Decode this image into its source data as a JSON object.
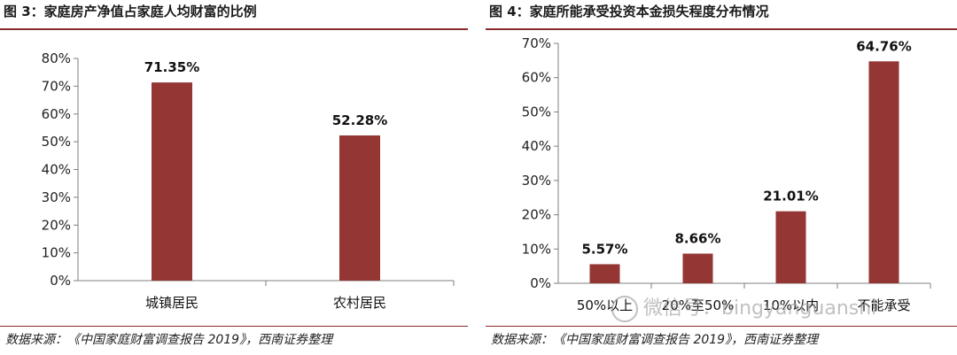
{
  "charts": [
    {
      "title": "图 3：家庭房产净值占家庭人均财富的比例",
      "source": "数据来源：《中国家庭财富调查报告 2019》，西南证券整理"
    },
    {
      "title": "图 4：家庭所能承受投资本金损失程度分布情况",
      "source": "数据来源：《中国家庭财富调查报告 2019》，西南证券整理"
    }
  ],
  "watermark": {
    "text": "微信号：bingyanguanshi"
  },
  "colors": {
    "bar": "#943634",
    "rule": "#8b2a2a",
    "axis": "#7f7f7f"
  },
  "chart_data": [
    {
      "type": "bar",
      "title": "图 3：家庭房产净值占家庭人均财富的比例",
      "categories": [
        "城镇居民",
        "农村居民"
      ],
      "values": [
        71.35,
        52.28
      ],
      "value_labels": [
        "71.35%",
        "52.28%"
      ],
      "yticks": [
        "0%",
        "10%",
        "20%",
        "30%",
        "40%",
        "50%",
        "60%",
        "70%",
        "80%"
      ],
      "ylim": [
        0,
        80
      ],
      "xlabel": "",
      "ylabel": "",
      "grid": false
    },
    {
      "type": "bar",
      "title": "图 4：家庭所能承受投资本金损失程度分布情况",
      "categories": [
        "50%以上",
        "20%至50%",
        "10%以内",
        "不能承受"
      ],
      "values": [
        5.57,
        8.66,
        21.01,
        64.76
      ],
      "value_labels": [
        "5.57%",
        "8.66%",
        "21.01%",
        "64.76%"
      ],
      "yticks": [
        "0%",
        "10%",
        "20%",
        "30%",
        "40%",
        "50%",
        "60%",
        "70%"
      ],
      "ylim": [
        0,
        70
      ],
      "xlabel": "",
      "ylabel": "",
      "grid": false
    }
  ]
}
